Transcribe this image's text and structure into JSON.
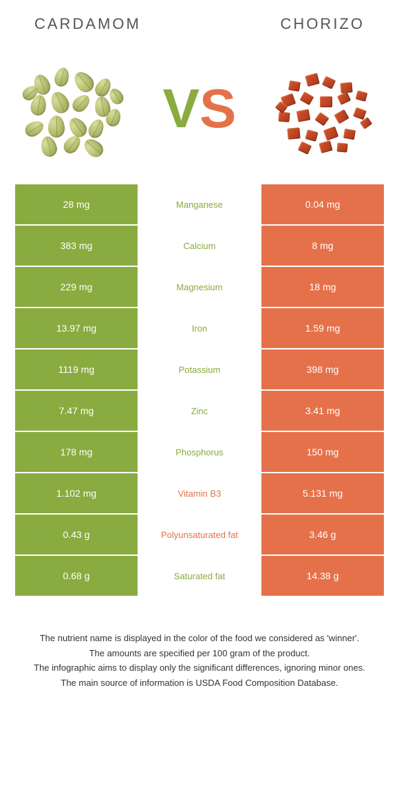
{
  "header": {
    "left_title": "CARDAMOM",
    "right_title": "CHORIZO"
  },
  "vs": {
    "v_letter": "V",
    "s_letter": "S",
    "v_color": "#8aab3f",
    "s_color": "#e5714a"
  },
  "colors": {
    "left_bg": "#8aab3f",
    "right_bg": "#e5714a",
    "left_text": "#ffffff",
    "right_text": "#ffffff",
    "mid_left_winner": "#8aab3f",
    "mid_right_winner": "#e5714a"
  },
  "rows": [
    {
      "left": "28 mg",
      "label": "Manganese",
      "right": "0.04 mg",
      "winner": "left"
    },
    {
      "left": "383 mg",
      "label": "Calcium",
      "right": "8 mg",
      "winner": "left"
    },
    {
      "left": "229 mg",
      "label": "Magnesium",
      "right": "18 mg",
      "winner": "left"
    },
    {
      "left": "13.97 mg",
      "label": "Iron",
      "right": "1.59 mg",
      "winner": "left"
    },
    {
      "left": "1119 mg",
      "label": "Potassium",
      "right": "398 mg",
      "winner": "left"
    },
    {
      "left": "7.47 mg",
      "label": "Zinc",
      "right": "3.41 mg",
      "winner": "left"
    },
    {
      "left": "178 mg",
      "label": "Phosphorus",
      "right": "150 mg",
      "winner": "left"
    },
    {
      "left": "1.102 mg",
      "label": "Vitamin B3",
      "right": "5.131 mg",
      "winner": "right"
    },
    {
      "left": "0.43 g",
      "label": "Polyunsaturated fat",
      "right": "3.46 g",
      "winner": "right"
    },
    {
      "left": "0.68 g",
      "label": "Saturated fat",
      "right": "14.38 g",
      "winner": "left"
    }
  ],
  "footer": {
    "line1": "The nutrient name is displayed in the color of the food we considered as 'winner'.",
    "line2": "The amounts are specified per 100 gram of the product.",
    "line3": "The infographic aims to display only the significant differences, ignoring minor ones.",
    "line4": "The main source of information is USDA Food Composition Database."
  }
}
